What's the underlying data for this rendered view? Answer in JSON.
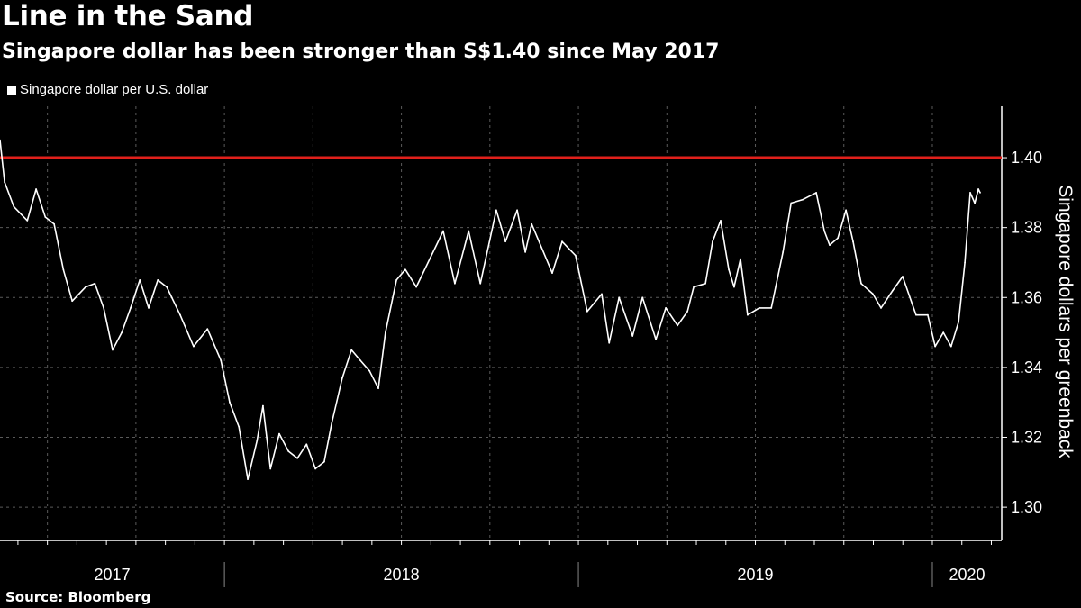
{
  "header": {
    "title": "Line in the Sand",
    "subtitle": "Singapore dollar has been stronger than S$1.40 since May 2017"
  },
  "footer": {
    "source": "Source: Bloomberg"
  },
  "colors": {
    "background": "#000000",
    "series": "#ffffff",
    "threshold": "#e0201b",
    "grid": "#666666"
  },
  "chart_data": {
    "type": "line",
    "title": "Line in the Sand",
    "subtitle": "Singapore dollar has been stronger than S$1.40 since May 2017",
    "legend": {
      "entries": [
        "Singapore dollar per U.S. dollar"
      ],
      "placement": "top-left"
    },
    "xlabel": "",
    "ylabel": "Singapore dollars per greenback",
    "y_axis_side": "right",
    "xlim": [
      2017.366,
      2020.196
    ],
    "ylim": [
      1.2905,
      1.4147
    ],
    "yticks": [
      1.3,
      1.32,
      1.34,
      1.36,
      1.38,
      1.4
    ],
    "ytick_labels": [
      "1.30",
      "1.32",
      "1.34",
      "1.36",
      "1.38",
      "1.40"
    ],
    "year_labels": [
      {
        "label": "2017",
        "start": 2017.366,
        "end": 2018.0
      },
      {
        "label": "2018",
        "start": 2018.0,
        "end": 2019.0
      },
      {
        "label": "2019",
        "start": 2019.0,
        "end": 2020.0
      },
      {
        "label": "2020",
        "start": 2020.0,
        "end": 2020.196
      }
    ],
    "grid": true,
    "reference_line": {
      "y": 1.4,
      "color": "#e0201b"
    },
    "series": [
      {
        "name": "Singapore dollar per U.S. dollar",
        "x": [
          2017.366,
          2017.379,
          2017.405,
          2017.443,
          2017.468,
          2017.494,
          2017.519,
          2017.545,
          2017.57,
          2017.608,
          2017.634,
          2017.659,
          2017.684,
          2017.71,
          2017.735,
          2017.761,
          2017.786,
          2017.812,
          2017.837,
          2017.875,
          2017.913,
          2017.952,
          2017.99,
          2018.015,
          2018.041,
          2018.066,
          2018.092,
          2018.109,
          2018.13,
          2018.155,
          2018.181,
          2018.206,
          2018.232,
          2018.257,
          2018.282,
          2018.303,
          2018.333,
          2018.359,
          2018.384,
          2018.41,
          2018.435,
          2018.455,
          2018.486,
          2018.511,
          2018.542,
          2018.618,
          2018.651,
          2018.69,
          2018.723,
          2018.768,
          2018.794,
          2018.827,
          2018.85,
          2018.868,
          2018.926,
          2018.954,
          2018.992,
          2019.025,
          2019.066,
          2019.087,
          2019.115,
          2019.153,
          2019.181,
          2019.219,
          2019.247,
          2019.28,
          2019.308,
          2019.326,
          2019.359,
          2019.379,
          2019.402,
          2019.425,
          2019.44,
          2019.458,
          2019.478,
          2019.511,
          2019.545,
          2019.578,
          2019.601,
          2019.634,
          2019.672,
          2019.695,
          2019.71,
          2019.733,
          2019.756,
          2019.776,
          2019.799,
          2019.832,
          2019.855,
          2019.888,
          2019.916,
          2019.954,
          2019.987,
          2020.008,
          2020.031,
          2020.053,
          2020.074,
          2020.092,
          2020.107,
          2020.12,
          2020.13,
          2020.135
        ],
        "values": [
          1.405,
          1.393,
          1.386,
          1.382,
          1.391,
          1.383,
          1.381,
          1.368,
          1.359,
          1.363,
          1.364,
          1.357,
          1.345,
          1.35,
          1.357,
          1.365,
          1.357,
          1.365,
          1.363,
          1.355,
          1.346,
          1.351,
          1.342,
          1.33,
          1.323,
          1.308,
          1.319,
          1.329,
          1.311,
          1.321,
          1.316,
          1.314,
          1.318,
          1.311,
          1.313,
          1.324,
          1.337,
          1.345,
          1.342,
          1.339,
          1.334,
          1.35,
          1.365,
          1.368,
          1.363,
          1.379,
          1.364,
          1.379,
          1.364,
          1.385,
          1.376,
          1.385,
          1.373,
          1.381,
          1.367,
          1.376,
          1.372,
          1.356,
          1.361,
          1.347,
          1.36,
          1.349,
          1.36,
          1.348,
          1.357,
          1.352,
          1.356,
          1.363,
          1.364,
          1.376,
          1.382,
          1.368,
          1.363,
          1.371,
          1.355,
          1.357,
          1.357,
          1.373,
          1.387,
          1.388,
          1.39,
          1.379,
          1.375,
          1.377,
          1.385,
          1.376,
          1.364,
          1.361,
          1.357,
          1.362,
          1.366,
          1.355,
          1.355,
          1.346,
          1.35,
          1.346,
          1.353,
          1.37,
          1.39,
          1.387,
          1.391,
          1.39
        ]
      }
    ]
  }
}
